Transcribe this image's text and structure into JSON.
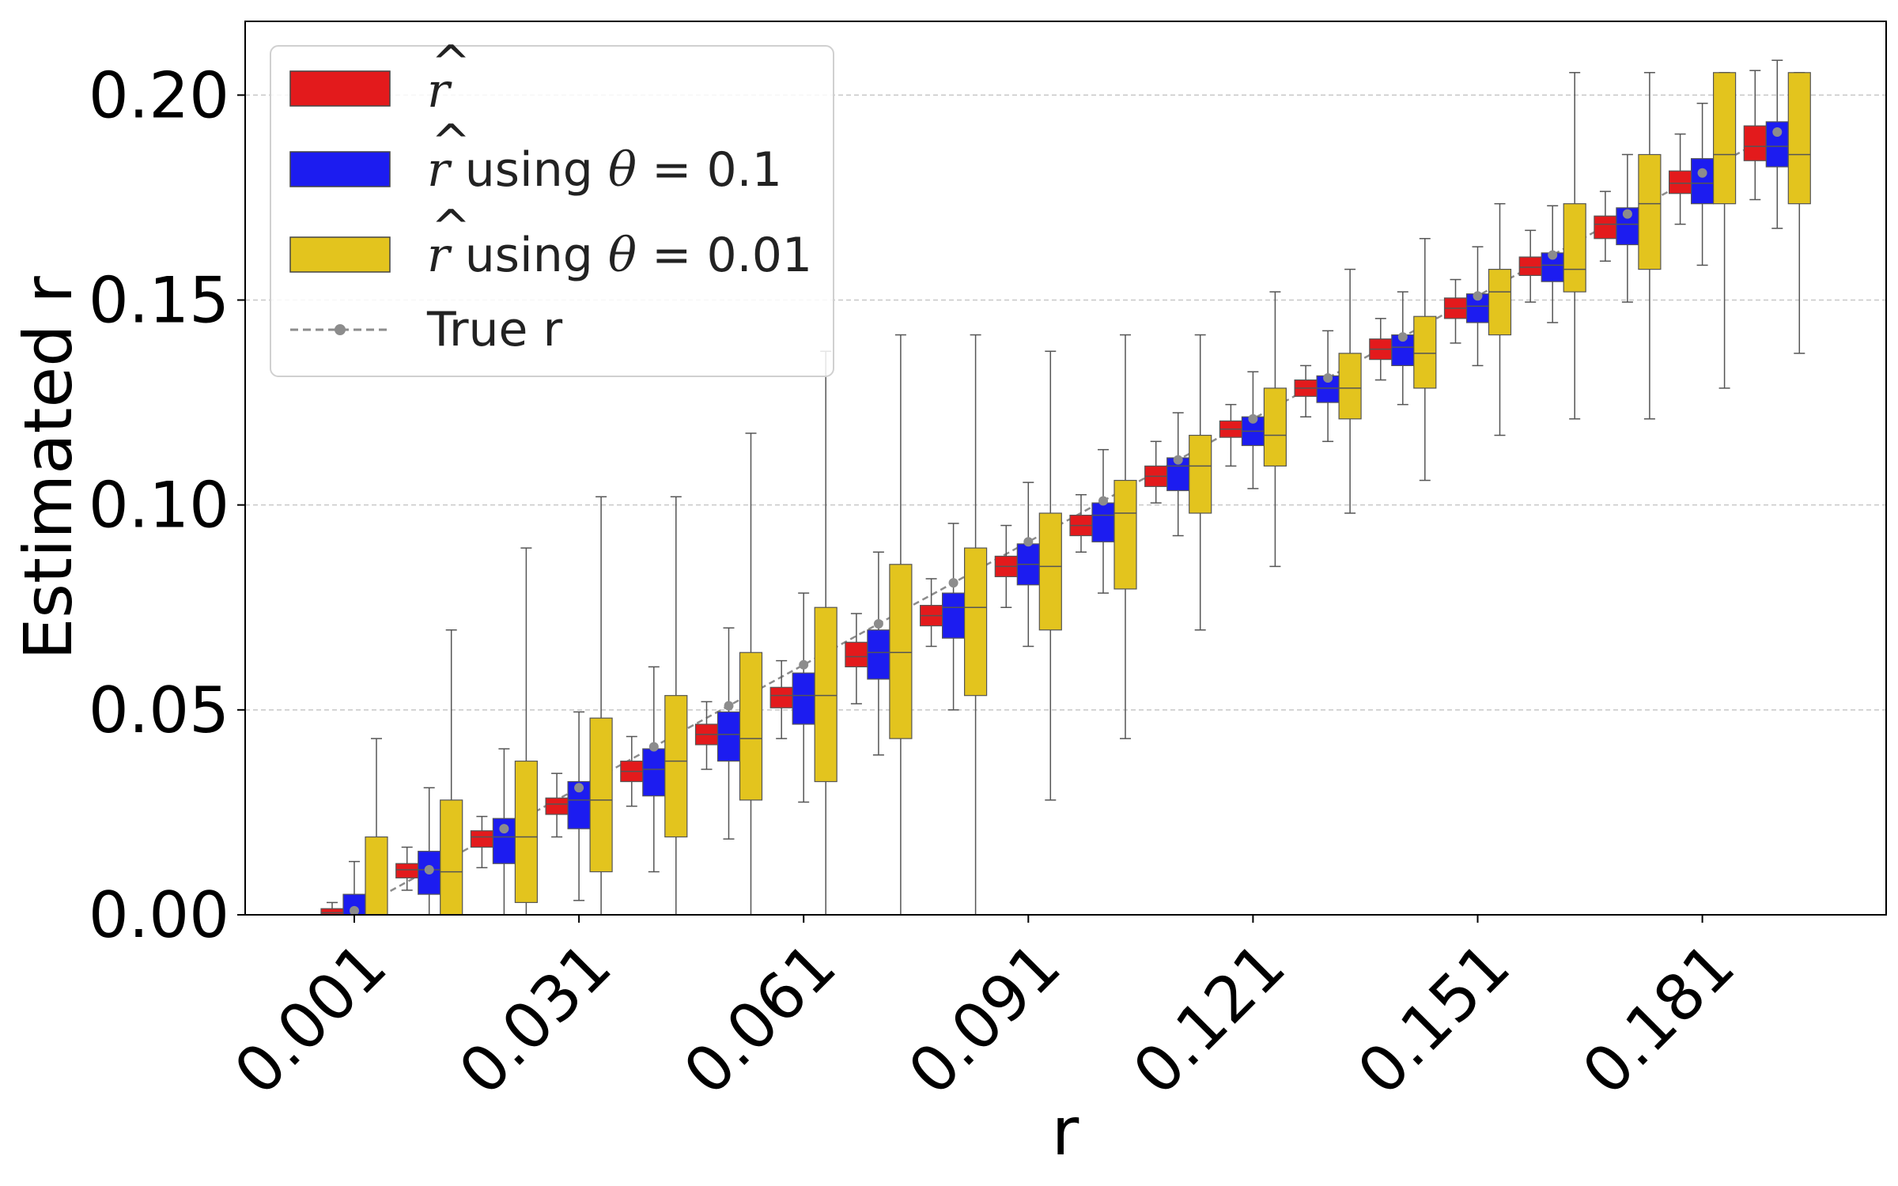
{
  "chart_data": {
    "type": "box",
    "xlabel": "r",
    "ylabel": "Estimated r",
    "ylim": [
      0.0,
      0.218
    ],
    "yticks": [
      "0.00",
      "0.05",
      "0.10",
      "0.15",
      "0.20"
    ],
    "ytick_values": [
      0.0,
      0.05,
      0.1,
      0.15,
      0.2
    ],
    "xtick_labels": [
      "0.001",
      "0.031",
      "0.061",
      "0.091",
      "0.121",
      "0.151",
      "0.181"
    ],
    "xtick_positions": [
      0,
      3,
      6,
      9,
      12,
      15,
      18
    ],
    "grid": "horizontal-dashed",
    "legend_position": "top-left",
    "categories": [
      "0.001",
      "0.011",
      "0.021",
      "0.031",
      "0.041",
      "0.051",
      "0.061",
      "0.071",
      "0.081",
      "0.091",
      "0.101",
      "0.111",
      "0.121",
      "0.131",
      "0.141",
      "0.151",
      "0.161",
      "0.171",
      "0.181",
      "0.191"
    ],
    "true_r": [
      0.001,
      0.011,
      0.021,
      0.031,
      0.041,
      0.051,
      0.061,
      0.071,
      0.081,
      0.091,
      0.101,
      0.111,
      0.121,
      0.131,
      0.141,
      0.151,
      0.161,
      0.171,
      0.181,
      0.191
    ],
    "series": [
      {
        "name": "r̂",
        "color": "#e31a1c",
        "boxes": [
          {
            "whislo": 0.0,
            "q1": 0.0,
            "med": 0.0005,
            "q3": 0.0015,
            "whishi": 0.003
          },
          {
            "whislo": 0.006,
            "q1": 0.009,
            "med": 0.011,
            "q3": 0.0125,
            "whishi": 0.0165
          },
          {
            "whislo": 0.0115,
            "q1": 0.0165,
            "med": 0.019,
            "q3": 0.0205,
            "whishi": 0.024
          },
          {
            "whislo": 0.019,
            "q1": 0.0245,
            "med": 0.027,
            "q3": 0.0285,
            "whishi": 0.0345
          },
          {
            "whislo": 0.0265,
            "q1": 0.0325,
            "med": 0.035,
            "q3": 0.0375,
            "whishi": 0.0435
          },
          {
            "whislo": 0.0355,
            "q1": 0.0415,
            "med": 0.044,
            "q3": 0.0465,
            "whishi": 0.052
          },
          {
            "whislo": 0.043,
            "q1": 0.0505,
            "med": 0.0535,
            "q3": 0.0555,
            "whishi": 0.062
          },
          {
            "whislo": 0.0515,
            "q1": 0.0605,
            "med": 0.063,
            "q3": 0.0665,
            "whishi": 0.0735
          },
          {
            "whislo": 0.0655,
            "q1": 0.0705,
            "med": 0.073,
            "q3": 0.0755,
            "whishi": 0.082
          },
          {
            "whislo": 0.075,
            "q1": 0.0825,
            "med": 0.085,
            "q3": 0.0875,
            "whishi": 0.095
          },
          {
            "whislo": 0.0885,
            "q1": 0.0925,
            "med": 0.095,
            "q3": 0.0975,
            "whishi": 0.1025
          },
          {
            "whislo": 0.1005,
            "q1": 0.1045,
            "med": 0.107,
            "q3": 0.1095,
            "whishi": 0.1155
          },
          {
            "whislo": 0.1095,
            "q1": 0.1165,
            "med": 0.1185,
            "q3": 0.1205,
            "whishi": 0.1245
          },
          {
            "whislo": 0.1215,
            "q1": 0.1265,
            "med": 0.1285,
            "q3": 0.1305,
            "whishi": 0.134
          },
          {
            "whislo": 0.1305,
            "q1": 0.1355,
            "med": 0.138,
            "q3": 0.1405,
            "whishi": 0.1455
          },
          {
            "whislo": 0.1395,
            "q1": 0.1455,
            "med": 0.148,
            "q3": 0.1505,
            "whishi": 0.155
          },
          {
            "whislo": 0.1495,
            "q1": 0.156,
            "med": 0.158,
            "q3": 0.1605,
            "whishi": 0.167
          },
          {
            "whislo": 0.1595,
            "q1": 0.165,
            "med": 0.1685,
            "q3": 0.1705,
            "whishi": 0.1765
          },
          {
            "whislo": 0.1685,
            "q1": 0.176,
            "med": 0.1785,
            "q3": 0.1815,
            "whishi": 0.1905
          },
          {
            "whislo": 0.1745,
            "q1": 0.184,
            "med": 0.1875,
            "q3": 0.1925,
            "whishi": 0.206
          }
        ]
      },
      {
        "name": "r̂ using θ = 0.1",
        "color": "#1c1cf0",
        "boxes": [
          {
            "whislo": 0.0,
            "q1": 0.0,
            "med": 0.0,
            "q3": 0.005,
            "whishi": 0.013
          },
          {
            "whislo": 0.0,
            "q1": 0.005,
            "med": 0.011,
            "q3": 0.0155,
            "whishi": 0.031
          },
          {
            "whislo": 0.0,
            "q1": 0.0125,
            "med": 0.019,
            "q3": 0.0235,
            "whishi": 0.0405
          },
          {
            "whislo": 0.0035,
            "q1": 0.021,
            "med": 0.028,
            "q3": 0.0325,
            "whishi": 0.0495
          },
          {
            "whislo": 0.0105,
            "q1": 0.029,
            "med": 0.0355,
            "q3": 0.0405,
            "whishi": 0.0605
          },
          {
            "whislo": 0.0185,
            "q1": 0.0375,
            "med": 0.044,
            "q3": 0.0495,
            "whishi": 0.07
          },
          {
            "whislo": 0.0275,
            "q1": 0.0465,
            "med": 0.0535,
            "q3": 0.059,
            "whishi": 0.0785
          },
          {
            "whislo": 0.039,
            "q1": 0.0575,
            "med": 0.064,
            "q3": 0.0695,
            "whishi": 0.0885
          },
          {
            "whislo": 0.05,
            "q1": 0.0675,
            "med": 0.075,
            "q3": 0.0785,
            "whishi": 0.0955
          },
          {
            "whislo": 0.0655,
            "q1": 0.0805,
            "med": 0.0855,
            "q3": 0.0905,
            "whishi": 0.1055
          },
          {
            "whislo": 0.0785,
            "q1": 0.091,
            "med": 0.0975,
            "q3": 0.1005,
            "whishi": 0.1135
          },
          {
            "whislo": 0.0925,
            "q1": 0.1035,
            "med": 0.1095,
            "q3": 0.1115,
            "whishi": 0.1225
          },
          {
            "whislo": 0.104,
            "q1": 0.1145,
            "med": 0.118,
            "q3": 0.1215,
            "whishi": 0.1325
          },
          {
            "whislo": 0.1155,
            "q1": 0.125,
            "med": 0.1285,
            "q3": 0.1315,
            "whishi": 0.1425
          },
          {
            "whislo": 0.1245,
            "q1": 0.134,
            "med": 0.1385,
            "q3": 0.1415,
            "whishi": 0.152
          },
          {
            "whislo": 0.134,
            "q1": 0.1445,
            "med": 0.1485,
            "q3": 0.1515,
            "whishi": 0.163
          },
          {
            "whislo": 0.1445,
            "q1": 0.1545,
            "med": 0.1585,
            "q3": 0.1615,
            "whishi": 0.173
          },
          {
            "whislo": 0.1495,
            "q1": 0.1635,
            "med": 0.1685,
            "q3": 0.1725,
            "whishi": 0.1855
          },
          {
            "whislo": 0.1585,
            "q1": 0.1735,
            "med": 0.1785,
            "q3": 0.1845,
            "whishi": 0.198
          },
          {
            "whislo": 0.1675,
            "q1": 0.1825,
            "med": 0.1875,
            "q3": 0.1935,
            "whishi": 0.2085
          }
        ]
      },
      {
        "name": "r̂ using θ = 0.01",
        "color": "#e3c41e",
        "boxes": [
          {
            "whislo": 0.0,
            "q1": 0.0,
            "med": 0.0,
            "q3": 0.019,
            "whishi": 0.043
          },
          {
            "whislo": 0.0,
            "q1": 0.0,
            "med": 0.0105,
            "q3": 0.028,
            "whishi": 0.0695
          },
          {
            "whislo": 0.0,
            "q1": 0.003,
            "med": 0.019,
            "q3": 0.0375,
            "whishi": 0.0895
          },
          {
            "whislo": 0.0,
            "q1": 0.0105,
            "med": 0.028,
            "q3": 0.048,
            "whishi": 0.102
          },
          {
            "whislo": 0.0,
            "q1": 0.019,
            "med": 0.0375,
            "q3": 0.0535,
            "whishi": 0.102
          },
          {
            "whislo": 0.0,
            "q1": 0.028,
            "med": 0.043,
            "q3": 0.064,
            "whishi": 0.1175
          },
          {
            "whislo": 0.0,
            "q1": 0.0325,
            "med": 0.0535,
            "q3": 0.075,
            "whishi": 0.1375
          },
          {
            "whislo": 0.0,
            "q1": 0.043,
            "med": 0.064,
            "q3": 0.0855,
            "whishi": 0.1415
          },
          {
            "whislo": 0.0,
            "q1": 0.0535,
            "med": 0.075,
            "q3": 0.0895,
            "whishi": 0.1415
          },
          {
            "whislo": 0.028,
            "q1": 0.0695,
            "med": 0.085,
            "q3": 0.098,
            "whishi": 0.1375
          },
          {
            "whislo": 0.043,
            "q1": 0.0795,
            "med": 0.098,
            "q3": 0.106,
            "whishi": 0.1415
          },
          {
            "whislo": 0.0695,
            "q1": 0.098,
            "med": 0.1095,
            "q3": 0.117,
            "whishi": 0.1415
          },
          {
            "whislo": 0.085,
            "q1": 0.1095,
            "med": 0.117,
            "q3": 0.1285,
            "whishi": 0.152
          },
          {
            "whislo": 0.098,
            "q1": 0.121,
            "med": 0.1285,
            "q3": 0.137,
            "whishi": 0.1575
          },
          {
            "whislo": 0.106,
            "q1": 0.1285,
            "med": 0.137,
            "q3": 0.146,
            "whishi": 0.165
          },
          {
            "whislo": 0.117,
            "q1": 0.1415,
            "med": 0.152,
            "q3": 0.1575,
            "whishi": 0.1735
          },
          {
            "whislo": 0.121,
            "q1": 0.152,
            "med": 0.1575,
            "q3": 0.1735,
            "whishi": 0.2055
          },
          {
            "whislo": 0.121,
            "q1": 0.1575,
            "med": 0.1735,
            "q3": 0.1855,
            "whishi": 0.2055
          },
          {
            "whislo": 0.1285,
            "q1": 0.1735,
            "med": 0.1855,
            "q3": 0.2055,
            "whishi": 0.2055
          },
          {
            "whislo": 0.137,
            "q1": 0.1735,
            "med": 0.1855,
            "q3": 0.2055,
            "whishi": 0.2055
          }
        ]
      }
    ],
    "true_line": {
      "name": "True r",
      "color": "#8c8c8c"
    }
  },
  "legend": {
    "items": [
      {
        "base": "r",
        "hat": "^",
        "suffix": ""
      },
      {
        "base": "r",
        "hat": "^",
        "suffix": " using ",
        "theta": "θ",
        "eq": " = 0.1"
      },
      {
        "base": "r",
        "hat": "^",
        "suffix": " using ",
        "theta": "θ",
        "eq": " = 0.01"
      },
      {
        "label": "True r"
      }
    ]
  }
}
